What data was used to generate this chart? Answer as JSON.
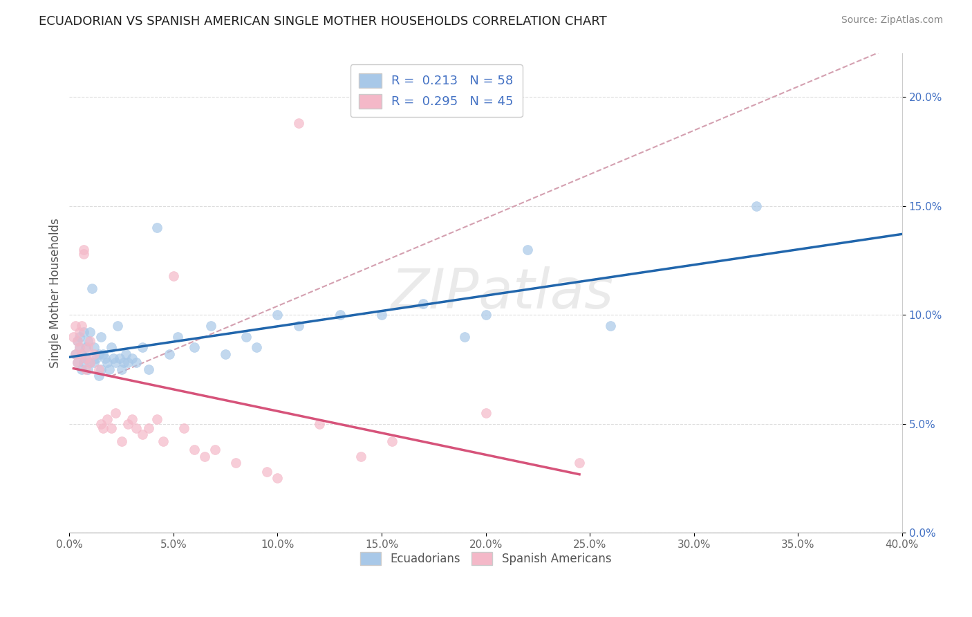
{
  "title": "ECUADORIAN VS SPANISH AMERICAN SINGLE MOTHER HOUSEHOLDS CORRELATION CHART",
  "source": "Source: ZipAtlas.com",
  "ylabel": "Single Mother Households",
  "watermark": "ZIPatlas",
  "xlim": [
    0.0,
    0.4
  ],
  "ylim": [
    0.0,
    0.22
  ],
  "xticks": [
    0.0,
    0.05,
    0.1,
    0.15,
    0.2,
    0.25,
    0.3,
    0.35,
    0.4
  ],
  "yticks": [
    0.0,
    0.05,
    0.1,
    0.15,
    0.2
  ],
  "blue_color": "#a8c8e8",
  "pink_color": "#f4b8c8",
  "blue_line_color": "#2166ac",
  "pink_line_color": "#d6537a",
  "dashed_line_color": "#d4a0b0",
  "axis_label_color": "#4472c4",
  "text_color": "#333333",
  "R_blue": 0.213,
  "N_blue": 58,
  "R_pink": 0.295,
  "N_pink": 45,
  "blue_scatter": [
    [
      0.003,
      0.082
    ],
    [
      0.004,
      0.088
    ],
    [
      0.004,
      0.078
    ],
    [
      0.005,
      0.09
    ],
    [
      0.005,
      0.085
    ],
    [
      0.006,
      0.075
    ],
    [
      0.006,
      0.082
    ],
    [
      0.007,
      0.092
    ],
    [
      0.007,
      0.078
    ],
    [
      0.008,
      0.085
    ],
    [
      0.008,
      0.08
    ],
    [
      0.009,
      0.088
    ],
    [
      0.009,
      0.075
    ],
    [
      0.01,
      0.092
    ],
    [
      0.01,
      0.078
    ],
    [
      0.011,
      0.112
    ],
    [
      0.012,
      0.085
    ],
    [
      0.012,
      0.078
    ],
    [
      0.013,
      0.08
    ],
    [
      0.014,
      0.082
    ],
    [
      0.014,
      0.072
    ],
    [
      0.015,
      0.09
    ],
    [
      0.015,
      0.075
    ],
    [
      0.016,
      0.082
    ],
    [
      0.017,
      0.08
    ],
    [
      0.018,
      0.078
    ],
    [
      0.019,
      0.075
    ],
    [
      0.02,
      0.085
    ],
    [
      0.021,
      0.08
    ],
    [
      0.022,
      0.078
    ],
    [
      0.023,
      0.095
    ],
    [
      0.024,
      0.08
    ],
    [
      0.025,
      0.075
    ],
    [
      0.026,
      0.078
    ],
    [
      0.027,
      0.082
    ],
    [
      0.028,
      0.078
    ],
    [
      0.03,
      0.08
    ],
    [
      0.032,
      0.078
    ],
    [
      0.035,
      0.085
    ],
    [
      0.038,
      0.075
    ],
    [
      0.042,
      0.14
    ],
    [
      0.048,
      0.082
    ],
    [
      0.052,
      0.09
    ],
    [
      0.06,
      0.085
    ],
    [
      0.068,
      0.095
    ],
    [
      0.075,
      0.082
    ],
    [
      0.085,
      0.09
    ],
    [
      0.09,
      0.085
    ],
    [
      0.1,
      0.1
    ],
    [
      0.11,
      0.095
    ],
    [
      0.13,
      0.1
    ],
    [
      0.15,
      0.1
    ],
    [
      0.17,
      0.105
    ],
    [
      0.19,
      0.09
    ],
    [
      0.2,
      0.1
    ],
    [
      0.22,
      0.13
    ],
    [
      0.26,
      0.095
    ],
    [
      0.33,
      0.15
    ]
  ],
  "pink_scatter": [
    [
      0.002,
      0.09
    ],
    [
      0.003,
      0.082
    ],
    [
      0.003,
      0.095
    ],
    [
      0.004,
      0.088
    ],
    [
      0.004,
      0.078
    ],
    [
      0.005,
      0.092
    ],
    [
      0.005,
      0.085
    ],
    [
      0.006,
      0.095
    ],
    [
      0.006,
      0.082
    ],
    [
      0.007,
      0.13
    ],
    [
      0.007,
      0.128
    ],
    [
      0.008,
      0.08
    ],
    [
      0.008,
      0.075
    ],
    [
      0.009,
      0.085
    ],
    [
      0.01,
      0.088
    ],
    [
      0.01,
      0.078
    ],
    [
      0.012,
      0.082
    ],
    [
      0.014,
      0.075
    ],
    [
      0.015,
      0.05
    ],
    [
      0.016,
      0.048
    ],
    [
      0.018,
      0.052
    ],
    [
      0.02,
      0.048
    ],
    [
      0.022,
      0.055
    ],
    [
      0.025,
      0.042
    ],
    [
      0.028,
      0.05
    ],
    [
      0.03,
      0.052
    ],
    [
      0.032,
      0.048
    ],
    [
      0.035,
      0.045
    ],
    [
      0.038,
      0.048
    ],
    [
      0.042,
      0.052
    ],
    [
      0.045,
      0.042
    ],
    [
      0.05,
      0.118
    ],
    [
      0.055,
      0.048
    ],
    [
      0.06,
      0.038
    ],
    [
      0.065,
      0.035
    ],
    [
      0.07,
      0.038
    ],
    [
      0.08,
      0.032
    ],
    [
      0.095,
      0.028
    ],
    [
      0.1,
      0.025
    ],
    [
      0.11,
      0.188
    ],
    [
      0.12,
      0.05
    ],
    [
      0.14,
      0.035
    ],
    [
      0.155,
      0.042
    ],
    [
      0.2,
      0.055
    ],
    [
      0.245,
      0.032
    ]
  ]
}
